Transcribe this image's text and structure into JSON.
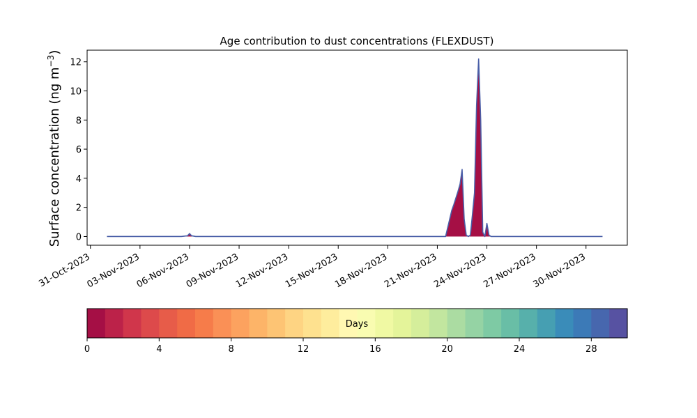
{
  "chart_data": {
    "type": "area",
    "title": "Age contribution to dust concentrations (FLEXDUST)",
    "ylabel_main": "Surface concentration (ng m",
    "ylabel_sup": "−3",
    "ylabel_close": ")",
    "xlabel": "",
    "x_start": "2023-10-31",
    "x_range_days": [
      -0.2,
      32.5
    ],
    "ylim": [
      -0.6,
      12.8
    ],
    "y_ticks": [
      0,
      2,
      4,
      6,
      8,
      10,
      12
    ],
    "y_tick_labels": [
      "0",
      "2",
      "4",
      "6",
      "8",
      "10",
      "12"
    ],
    "x_ticks": [
      "2023-10-31",
      "2023-11-03",
      "2023-11-06",
      "2023-11-09",
      "2023-11-12",
      "2023-11-15",
      "2023-11-18",
      "2023-11-21",
      "2023-11-24",
      "2023-11-27",
      "2023-11-30"
    ],
    "x_tick_labels": [
      "31-Oct-2023",
      "03-Nov-2023",
      "06-Nov-2023",
      "09-Nov-2023",
      "12-Nov-2023",
      "15-Nov-2023",
      "18-Nov-2023",
      "21-Nov-2023",
      "24-Nov-2023",
      "27-Nov-2023",
      "30-Nov-2023"
    ],
    "grid": false,
    "series": [
      {
        "x": [
          "2023-11-01T00:00",
          "2023-11-05T12:00",
          "2023-11-05T21:00",
          "2023-11-06T00:00",
          "2023-11-06T03:00",
          "2023-11-06T09:00",
          "2023-11-21T12:00",
          "2023-11-21T21:00",
          "2023-11-22T00:00",
          "2023-11-22T06:00",
          "2023-11-22T09:00",
          "2023-11-22T12:00",
          "2023-11-22T15:00",
          "2023-11-22T18:00",
          "2023-11-22T21:00",
          "2023-11-23T00:00",
          "2023-11-23T03:00",
          "2023-11-23T06:00",
          "2023-11-23T09:00",
          "2023-11-23T12:00",
          "2023-11-23T15:00",
          "2023-11-23T18:00",
          "2023-11-23T21:00",
          "2023-11-24T00:00",
          "2023-11-24T03:00",
          "2023-11-24T06:00",
          "2023-11-24T09:00",
          "2023-11-24T12:00",
          "2023-11-24T15:00",
          "2023-11-24T18:00",
          "2023-11-24T21:00",
          "2023-11-25T00:00",
          "2023-12-01T00:00"
        ],
        "values": [
          0,
          0,
          0.05,
          0.2,
          0.05,
          0,
          0,
          1.8,
          2.2,
          3.1,
          3.6,
          4.6,
          1.2,
          0.1,
          0,
          0.1,
          1.5,
          3.0,
          9.0,
          12.2,
          8.0,
          0.3,
          0,
          0.9,
          0.1,
          0,
          0,
          0,
          0,
          0,
          0,
          0,
          0
        ],
        "fill_color": "#a50f45",
        "line_color": "#4a5fa8"
      }
    ],
    "colorbar": {
      "label": "Days",
      "min": 0,
      "max": 30,
      "ticks": [
        0,
        4,
        8,
        12,
        16,
        20,
        24,
        28
      ],
      "tick_labels": [
        "0",
        "4",
        "8",
        "12",
        "16",
        "20",
        "24",
        "28"
      ],
      "colors": [
        "#a50f45",
        "#bc2249",
        "#d0364b",
        "#dd4a4b",
        "#e75c49",
        "#f06b46",
        "#f67c4a",
        "#fa9056",
        "#fca25f",
        "#fdb468",
        "#fdc474",
        "#fed483",
        "#fee18f",
        "#feed9d",
        "#fff8b2",
        "#f9fcb1",
        "#f0f9a3",
        "#e4f49a",
        "#d5ee9b",
        "#c2e69f",
        "#abdca2",
        "#95d3a4",
        "#7ecaa4",
        "#69bea6",
        "#57b0ab",
        "#469fb2",
        "#3a8cb9",
        "#3c7ab7",
        "#4767ae",
        "#5752a2"
      ]
    }
  }
}
